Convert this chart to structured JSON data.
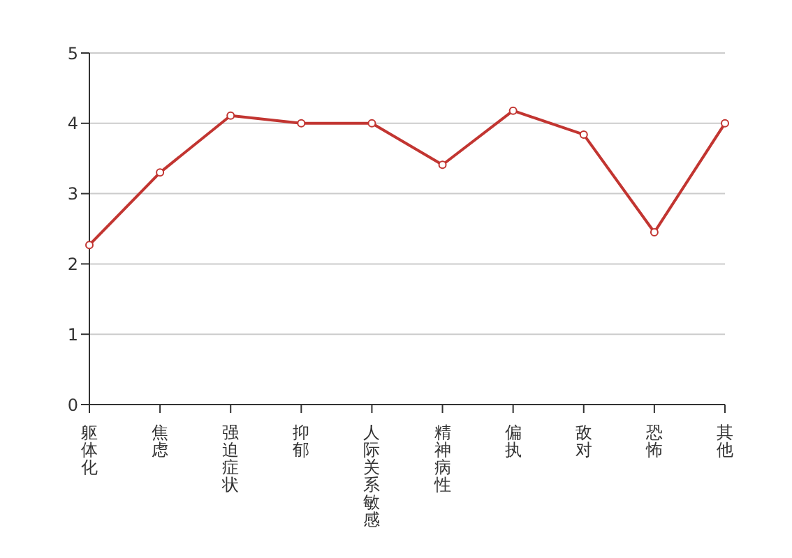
{
  "chart_data": {
    "type": "line",
    "categories": [
      "躯体化",
      "焦虑",
      "强迫症状",
      "抑郁",
      "人际关系敏感",
      "精神病性",
      "偏执",
      "敌对",
      "恐怖",
      "其他"
    ],
    "series": [
      {
        "color": "#c23531",
        "values": [
          2.27,
          3.3,
          4.11,
          4.0,
          4.0,
          3.41,
          4.18,
          3.84,
          2.45,
          4.0
        ]
      }
    ],
    "ylim": [
      0,
      5
    ],
    "yticks": [
      0,
      1,
      2,
      3,
      4,
      5
    ],
    "grid": "y",
    "marker": "circle",
    "line_style": "solid"
  }
}
